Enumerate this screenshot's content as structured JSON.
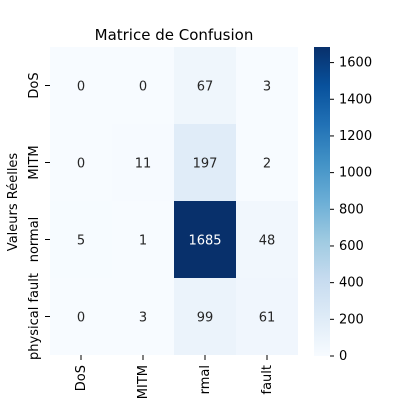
{
  "chart_data": {
    "type": "heatmap",
    "title": "Matrice de Confusion",
    "xlabel": "",
    "ylabel": "Valeurs Réelles",
    "x_tick_labels": [
      "DoS",
      "MITM",
      "rmal",
      "fault"
    ],
    "y_tick_labels": [
      "DoS",
      "MITM",
      "normal",
      "physical fault"
    ],
    "values": [
      [
        0,
        0,
        67,
        3
      ],
      [
        0,
        11,
        197,
        2
      ],
      [
        5,
        1,
        1685,
        48
      ],
      [
        0,
        3,
        99,
        61
      ]
    ],
    "color_range": [
      0,
      1685
    ],
    "colorbar_ticks": [
      0,
      200,
      400,
      600,
      800,
      1000,
      1200,
      1400,
      1600
    ],
    "colors": {
      "low": "#f7fbff",
      "high": "#08306b",
      "text_dark": "#262626",
      "text_light": "#ffffff"
    },
    "colorbar": true,
    "grid": false
  }
}
